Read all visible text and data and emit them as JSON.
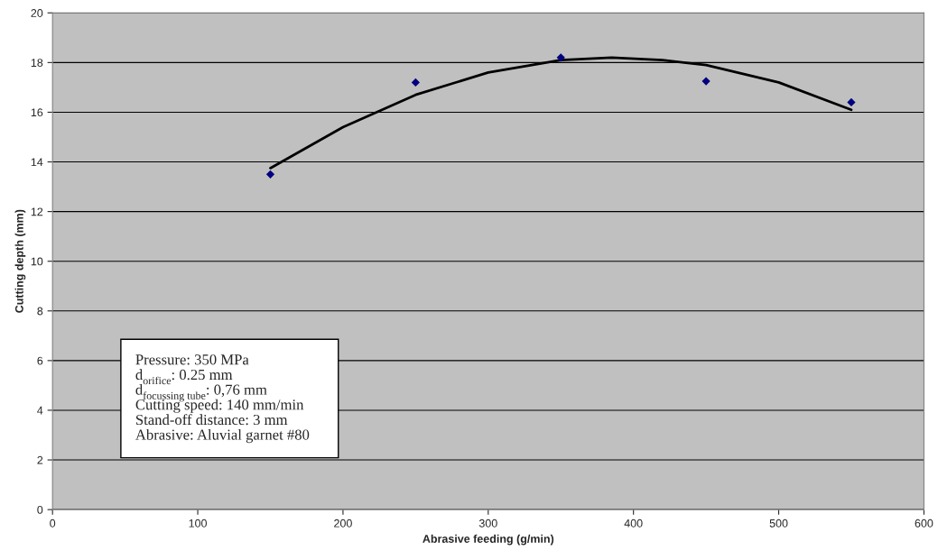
{
  "chart_data": {
    "type": "scatter",
    "xlabel": "Abrasive feeding (g/min)",
    "ylabel": "Cutting depth (mm)",
    "xlim": [
      0,
      600
    ],
    "xticks": [
      0,
      100,
      200,
      300,
      400,
      500,
      600
    ],
    "ylim": [
      0,
      20
    ],
    "yticks": [
      0,
      2,
      4,
      6,
      8,
      10,
      12,
      14,
      16,
      18,
      20
    ],
    "grid": "y",
    "legend": false,
    "x": [
      150,
      250,
      350,
      450,
      550
    ],
    "series": [
      {
        "color": "#000080",
        "marker": "diamond",
        "values": [
          13.5,
          17.2,
          18.2,
          17.25,
          16.4
        ]
      },
      {
        "type": "line",
        "color": "#000000",
        "line_style": "solid",
        "x": [
          150,
          200,
          250,
          300,
          350,
          385,
          420,
          450,
          500,
          550
        ],
        "values": [
          13.75,
          15.4,
          16.7,
          17.6,
          18.1,
          18.2,
          18.1,
          17.9,
          17.2,
          16.1
        ]
      }
    ],
    "annotations": [
      "Pressure: 350 MPa",
      "d$_{orifice}$: 0.25 mm",
      "d$_{focussing tube}$: 0,76 mm",
      "Cutting speed: 140 mm/min",
      "Stand-off distance: 3 mm",
      "Abrasive: Aluvial garnet #80"
    ]
  }
}
